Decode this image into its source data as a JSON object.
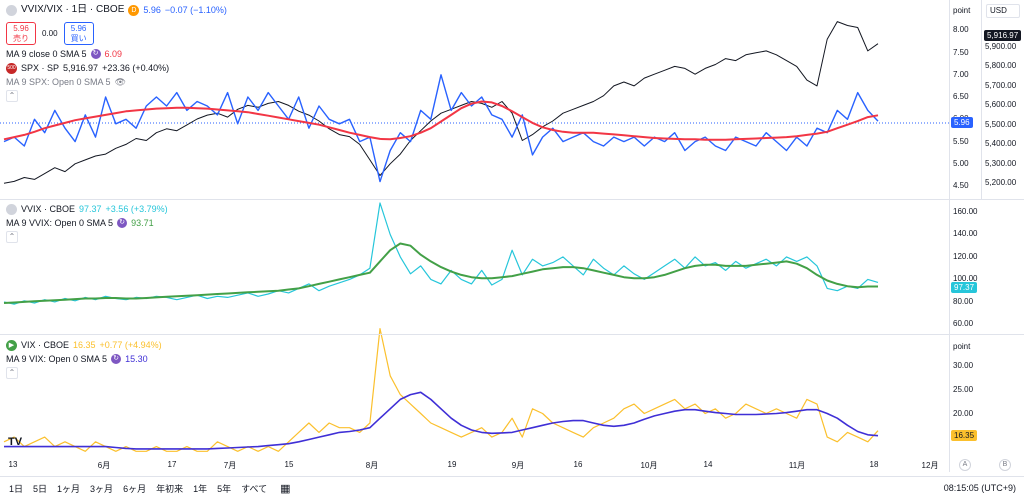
{
  "top_legend": {
    "title": "VVIX/VIX · 1日 · CBOE",
    "badge": "D",
    "last": "5.96",
    "change": "−0.07 (−1.10%)",
    "sell_price": "5.96",
    "sell_label": "売り",
    "spread": "0.00",
    "buy_price": "5.96",
    "buy_label": "買い",
    "ma_label": "MA 9 close 0 SMA 5",
    "ma_value": "6.09",
    "spx_label": "SPX · SP",
    "spx_value": "5,916.97",
    "spx_change": "+23.36 (+0.40%)",
    "spx_ma_label": "MA 9 SPX: Open 0 SMA 5"
  },
  "mid_legend": {
    "title": "VVIX · CBOE",
    "value": "97.37",
    "change": "+3.56 (+3.79%)",
    "ma_label": "MA 9 VVIX: Open 0 SMA 5",
    "ma_value": "93.71"
  },
  "low_legend": {
    "title": "VIX · CBOE",
    "value": "16.35",
    "change": "+0.77 (+4.94%)",
    "ma_label": "MA 9 VIX: Open 0 SMA 5",
    "ma_value": "15.30"
  },
  "axis": {
    "head_point": "point",
    "head_usd": "USD",
    "top_ticks": [
      "8.00",
      "7.50",
      "7.00",
      "6.50",
      "6.00",
      "5.50",
      "5.00",
      "4.50"
    ],
    "spx_ticks": [
      "5,900.00",
      "5,800.00",
      "5,700.00",
      "5,600.00",
      "5,500.00",
      "5,400.00",
      "5,300.00",
      "5,200.00"
    ],
    "top_tag": "5.96",
    "spx_tag": "5,916.97",
    "mid_ticks": [
      "160.00",
      "140.00",
      "120.00",
      "100.00",
      "80.00",
      "60.00"
    ],
    "mid_tag": "97.37",
    "low_ticks": [
      "30.00",
      "25.00",
      "20.00",
      "15.00"
    ],
    "low_tag": "16.35",
    "low_head": "point"
  },
  "time_axis": [
    "13",
    "6月",
    "17",
    "7月",
    "15",
    "8月",
    "19",
    "9月",
    "16",
    "10月",
    "14",
    "11月",
    "18",
    "12月"
  ],
  "bottom": {
    "ranges": [
      "1日",
      "5日",
      "1ヶ月",
      "3ヶ月",
      "6ヶ月",
      "年初来",
      "1年",
      "5年",
      "すべて"
    ],
    "clock": "08:15:05 (UTC+9)",
    "btn_a": "A",
    "btn_b": "B",
    "logo": "TV"
  },
  "colors": {
    "ratio": "#2962ff",
    "ratio_ma": "#f23645",
    "spx": "#131722",
    "vvix": "#26c6da",
    "vvix_ma": "#43a047",
    "vix": "#fbc02d",
    "vix_ma": "#3f2fd6"
  },
  "chart_data": [
    {
      "type": "line",
      "name": "VVIX/VIX",
      "ylim": [
        4.3,
        8.5
      ],
      "series": [
        {
          "name": "VVIX/VIX",
          "values": [
            5.5,
            5.6,
            5.4,
            6.0,
            5.7,
            6.2,
            5.8,
            5.5,
            6.1,
            5.6,
            6.5,
            5.9,
            6.0,
            5.8,
            6.3,
            6.5,
            6.3,
            6.6,
            6.2,
            6.4,
            6.3,
            6.1,
            6.6,
            5.9,
            6.5,
            6.2,
            6.6,
            6.3,
            6.0,
            6.5,
            5.8,
            6.3,
            6.0,
            5.9,
            6.0,
            5.5,
            5.6,
            4.6,
            5.3,
            5.7,
            5.5,
            6.2,
            6.0,
            7.0,
            6.2,
            6.6,
            6.3,
            6.5,
            6.1,
            6.0,
            5.6,
            6.1,
            5.2,
            5.6,
            5.8,
            5.5,
            5.6,
            5.7,
            5.5,
            5.4,
            5.6,
            5.5,
            5.6,
            5.4,
            5.6,
            5.5,
            5.7,
            5.3,
            5.5,
            5.6,
            5.4,
            5.3,
            5.6,
            5.5,
            5.4,
            5.7,
            5.5,
            5.3,
            5.6,
            5.4,
            5.8,
            5.7,
            6.2,
            6.0,
            6.6,
            6.2,
            5.96
          ]
        },
        {
          "name": "SPX",
          "values": [
            5200,
            5210,
            5230,
            5220,
            5250,
            5280,
            5260,
            5300,
            5320,
            5340,
            5350,
            5380,
            5400,
            5430,
            5420,
            5460,
            5480,
            5470,
            5500,
            5530,
            5550,
            5560,
            5540,
            5580,
            5600,
            5590,
            5610,
            5620,
            5600,
            5570,
            5550,
            5520,
            5480,
            5450,
            5440,
            5400,
            5320,
            5240,
            5300,
            5350,
            5420,
            5470,
            5520,
            5560,
            5580,
            5600,
            5620,
            5610,
            5590,
            5620,
            5560,
            5420,
            5450,
            5490,
            5520,
            5560,
            5580,
            5600,
            5620,
            5650,
            5700,
            5720,
            5700,
            5740,
            5760,
            5780,
            5800,
            5790,
            5760,
            5790,
            5810,
            5840,
            5830,
            5860,
            5870,
            5880,
            5860,
            5830,
            5800,
            5730,
            5700,
            5940,
            6030,
            6010,
            6000,
            5880,
            5916.97
          ]
        },
        {
          "name": "MA 9 close 0 SMA 5",
          "values": [
            5.55,
            5.6,
            5.65,
            5.72,
            5.8,
            5.86,
            5.92,
            5.98,
            6.02,
            6.06,
            6.1,
            6.14,
            6.18,
            6.2,
            6.22,
            6.24,
            6.25,
            6.26,
            6.26,
            6.25,
            6.24,
            6.22,
            6.2,
            6.18,
            6.16,
            6.12,
            6.08,
            6.04,
            6.0,
            5.96,
            5.92,
            5.88,
            5.82,
            5.76,
            5.7,
            5.65,
            5.6,
            5.56,
            5.55,
            5.58,
            5.62,
            5.7,
            5.8,
            5.95,
            6.1,
            6.25,
            6.35,
            6.4,
            6.38,
            6.3,
            6.18,
            6.05,
            5.92,
            5.82,
            5.76,
            5.72,
            5.7,
            5.7,
            5.7,
            5.68,
            5.66,
            5.64,
            5.62,
            5.6,
            5.58,
            5.57,
            5.56,
            5.55,
            5.55,
            5.54,
            5.54,
            5.54,
            5.55,
            5.56,
            5.57,
            5.58,
            5.59,
            5.6,
            5.62,
            5.65,
            5.68,
            5.72,
            5.8,
            5.88,
            5.96,
            6.05,
            6.09
          ]
        }
      ]
    },
    {
      "type": "line",
      "name": "VVIX",
      "ylim": [
        55,
        168
      ],
      "series": [
        {
          "name": "VVIX",
          "values": [
            80,
            78,
            81,
            79,
            82,
            80,
            83,
            81,
            84,
            82,
            85,
            83,
            82,
            84,
            83,
            85,
            84,
            82,
            84,
            86,
            83,
            85,
            84,
            86,
            88,
            85,
            87,
            90,
            88,
            92,
            96,
            90,
            94,
            97,
            100,
            104,
            110,
            168,
            140,
            120,
            105,
            112,
            100,
            96,
            108,
            100,
            96,
            108,
            95,
            100,
            126,
            104,
            118,
            112,
            115,
            120,
            112,
            104,
            118,
            110,
            104,
            112,
            105,
            100,
            106,
            112,
            118,
            110,
            120,
            112,
            115,
            108,
            116,
            110,
            114,
            118,
            112,
            120,
            116,
            120,
            112,
            92,
            90,
            94,
            92,
            100,
            97.37
          ]
        },
        {
          "name": "MA 9 VVIX: Open 0 SMA 5",
          "values": [
            79,
            79.5,
            80,
            80.5,
            81,
            81.5,
            82,
            82.5,
            83,
            83,
            83.5,
            83.5,
            83,
            83,
            83.5,
            84,
            84.5,
            85,
            85.5,
            86,
            86.5,
            87,
            87.5,
            88,
            88.5,
            89,
            89.5,
            90,
            91,
            92,
            94,
            96,
            98,
            100,
            102,
            104,
            106,
            116,
            126,
            132,
            130,
            122,
            116,
            111,
            107,
            104,
            102,
            101,
            101,
            102,
            103,
            105,
            107,
            109,
            110,
            111,
            111,
            110,
            108,
            106,
            104,
            102,
            101,
            101,
            102,
            104,
            107,
            110,
            112,
            113,
            113,
            112,
            112,
            112,
            113,
            114,
            115,
            116,
            114,
            110,
            104,
            99,
            96,
            94,
            93,
            93.71,
            93.71
          ]
        }
      ]
    },
    {
      "type": "line",
      "name": "VIX",
      "ylim": [
        11,
        36
      ],
      "series": [
        {
          "name": "VIX",
          "values": [
            14,
            15,
            13,
            14,
            15,
            13,
            14,
            13,
            12,
            14,
            13,
            12,
            13,
            12,
            12,
            13,
            12,
            12,
            13,
            12,
            12,
            14,
            13,
            12,
            13,
            12,
            13,
            12,
            14,
            16,
            18,
            16,
            18,
            17,
            17,
            16,
            18,
            38,
            28,
            24,
            22,
            20,
            18,
            17,
            16,
            15,
            16,
            17,
            15,
            16,
            19,
            15,
            21,
            20,
            18,
            17,
            16,
            15,
            17,
            18,
            19,
            21,
            22,
            20,
            21,
            22,
            23,
            21,
            22,
            20,
            21,
            19,
            20,
            22,
            21,
            20,
            21,
            20,
            19,
            23,
            22,
            15,
            14,
            16,
            15,
            14,
            16.35
          ]
        },
        {
          "name": "MA 9 VIX: Open 0 SMA 5",
          "values": [
            13,
            13,
            13,
            13,
            13,
            13,
            13,
            13,
            13,
            13,
            13,
            12.8,
            12.6,
            12.5,
            12.5,
            12.5,
            12.5,
            12.5,
            12.5,
            12.5,
            12.5,
            12.6,
            12.7,
            12.8,
            12.9,
            13,
            13.2,
            13.4,
            13.6,
            14,
            14.5,
            15,
            15.5,
            16,
            16.2,
            16.5,
            17,
            19,
            21,
            23,
            24,
            24.5,
            23,
            21,
            19,
            17.5,
            16.5,
            16,
            15.8,
            15.9,
            16,
            16.5,
            17,
            17.5,
            18,
            18.3,
            18.5,
            18.5,
            18,
            17.5,
            17.3,
            17.5,
            18,
            18.8,
            19.5,
            20,
            20.5,
            20.8,
            20.8,
            20.5,
            20.2,
            20,
            19.8,
            19.8,
            19.8,
            19.9,
            20,
            20.2,
            20.5,
            20.8,
            20.8,
            20,
            19,
            17.5,
            16.2,
            15.5,
            15.3
          ]
        }
      ]
    }
  ]
}
